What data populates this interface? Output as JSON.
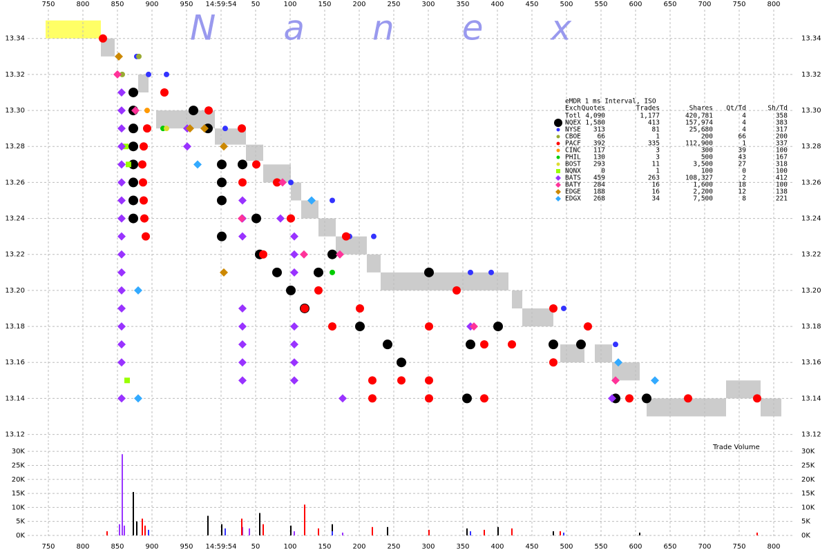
{
  "chart_data": [
    {
      "type": "scatter",
      "title": "Nanex",
      "xlim": [
        720,
        1830
      ],
      "xticks": [
        750,
        800,
        850,
        900,
        950,
        {
          "value": 1000,
          "label": "14:59:54"
        },
        {
          "value": 1050,
          "label": "50"
        },
        {
          "value": 1100,
          "label": "100"
        },
        {
          "value": 1150,
          "label": "150"
        },
        {
          "value": 1200,
          "label": "200"
        },
        {
          "value": 1250,
          "label": "250"
        },
        {
          "value": 1300,
          "label": "300"
        },
        {
          "value": 1350,
          "label": "350"
        },
        {
          "value": 1400,
          "label": "400"
        },
        {
          "value": 1450,
          "label": "450"
        },
        {
          "value": 1500,
          "label": "500"
        },
        {
          "value": 1550,
          "label": "550"
        },
        {
          "value": 1600,
          "label": "600"
        },
        {
          "value": 1650,
          "label": "650"
        },
        {
          "value": 1700,
          "label": "700"
        },
        {
          "value": 1750,
          "label": "750"
        },
        {
          "value": 1800,
          "label": "800"
        }
      ],
      "ylim": [
        13.116,
        13.356
      ],
      "yticks": [
        13.12,
        13.14,
        13.16,
        13.18,
        {
          "value": 13.2,
          "label": "13.20"
        },
        13.22,
        13.24,
        13.26,
        13.28,
        {
          "value": 13.3,
          "label": "13.30"
        },
        13.32,
        13.34
      ],
      "grid": true,
      "nbbo": {
        "color": "#cccccc",
        "x_start": [
          826,
          880,
          906,
          946,
          991,
          1036,
          1061,
          1101,
          1116,
          1141,
          1166,
          1211,
          1231,
          1256,
          1421,
          1436,
          1491,
          1541,
          1566,
          1616,
          1731,
          1781
        ],
        "x_end": [
          846,
          895,
          946,
          991,
          1036,
          1061,
          1101,
          1116,
          1141,
          1166,
          1211,
          1231,
          1256,
          1416,
          1436,
          1481,
          1526,
          1566,
          1606,
          1731,
          1781,
          1811
        ],
        "low": [
          13.33,
          13.31,
          13.29,
          13.29,
          13.281,
          13.272,
          13.26,
          13.25,
          13.24,
          13.23,
          13.22,
          13.21,
          13.2,
          13.2,
          13.19,
          13.18,
          13.16,
          13.16,
          13.15,
          13.13,
          13.14,
          13.13
        ],
        "high": [
          13.34,
          13.32,
          13.3,
          13.3,
          13.29,
          13.281,
          13.27,
          13.26,
          13.25,
          13.24,
          13.23,
          13.22,
          13.21,
          13.21,
          13.2,
          13.19,
          13.17,
          13.17,
          13.16,
          13.14,
          13.15,
          13.14
        ]
      },
      "crossed": {
        "color": "#ffff66",
        "x_start": [
          746
        ],
        "x_end": [
          826
        ],
        "low": [
          13.34
        ],
        "high": [
          13.35
        ]
      },
      "series": [
        {
          "name": "NQEX",
          "color": "#000000",
          "marker": "circle",
          "x": [
            873,
            873,
            873,
            873,
            873,
            873,
            873,
            873,
            960,
            981,
            1001,
            1001,
            1001,
            1001,
            1031,
            1051,
            1056,
            1081,
            1101,
            1121,
            1141,
            1161,
            1201,
            1241,
            1261,
            1301,
            1356,
            1361,
            1401,
            1481,
            1521,
            1571,
            1616
          ],
          "values": [
            13.31,
            13.3,
            13.29,
            13.28,
            13.27,
            13.26,
            13.25,
            13.24,
            13.3,
            13.29,
            13.27,
            13.26,
            13.25,
            13.23,
            13.27,
            13.24,
            13.22,
            13.21,
            13.2,
            13.19,
            13.21,
            13.22,
            13.18,
            13.17,
            13.16,
            13.21,
            13.14,
            13.17,
            13.18,
            13.17,
            13.17,
            13.14,
            13.14
          ]
        },
        {
          "name": "NYSE",
          "color": "#3333ff",
          "marker": "circle",
          "x": [
            878,
            895,
            921,
            1006,
            1101,
            1161,
            1186,
            1221,
            1361,
            1391,
            1496,
            1571
          ],
          "values": [
            13.33,
            13.32,
            13.32,
            13.29,
            13.26,
            13.25,
            13.23,
            13.23,
            13.21,
            13.21,
            13.19,
            13.17
          ]
        },
        {
          "name": "CBOE",
          "color": "#99aa33",
          "marker": "circle",
          "x": [
            881,
            857
          ],
          "values": [
            13.33,
            13.32
          ]
        },
        {
          "name": "PACF",
          "color": "#ff0000",
          "marker": "circle",
          "x": [
            829,
            893,
            888,
            886,
            887,
            888,
            889,
            891,
            918,
            982,
            1030,
            1031,
            1051,
            1081,
            1061,
            1101,
            1121,
            1141,
            1161,
            1181,
            1201,
            1219,
            1219,
            1261,
            1301,
            1301,
            1301,
            1341,
            1381,
            1381,
            1421,
            1481,
            1481,
            1531,
            1591,
            1676,
            1776
          ],
          "values": [
            13.34,
            13.29,
            13.28,
            13.27,
            13.26,
            13.25,
            13.24,
            13.23,
            13.31,
            13.3,
            13.29,
            13.26,
            13.27,
            13.26,
            13.22,
            13.24,
            13.19,
            13.2,
            13.18,
            13.23,
            13.19,
            13.15,
            13.14,
            13.15,
            13.18,
            13.15,
            13.14,
            13.2,
            13.17,
            13.14,
            13.17,
            13.19,
            13.16,
            13.18,
            13.14,
            13.14,
            13.14
          ]
        },
        {
          "name": "CINC",
          "color": "#ff9900",
          "marker": "circle",
          "x": [
            893
          ],
          "values": [
            13.3
          ]
        },
        {
          "name": "PHIL",
          "color": "#00cc00",
          "marker": "circle",
          "x": [
            916,
            1161
          ],
          "values": [
            13.29,
            13.21
          ]
        },
        {
          "name": "BOST",
          "color": "#dddd33",
          "marker": "circle",
          "x": [
            921
          ],
          "values": [
            13.29
          ]
        },
        {
          "name": "NQNX",
          "color": "#99ff00",
          "marker": "square",
          "x": [
            862,
            866,
            864
          ],
          "values": [
            13.28,
            13.27,
            13.15
          ]
        },
        {
          "name": "BATS",
          "color": "#9933ff",
          "marker": "diamond",
          "x": [
            856,
            856,
            856,
            856,
            856,
            856,
            856,
            856,
            856,
            856,
            856,
            856,
            856,
            856,
            856,
            856,
            856,
            951,
            951,
            1031,
            1031,
            1031,
            1031,
            1031,
            1031,
            1031,
            1031,
            1086,
            1106,
            1106,
            1106,
            1106,
            1106,
            1106,
            1106,
            1176,
            1361,
            1566
          ],
          "values": [
            13.31,
            13.3,
            13.29,
            13.28,
            13.27,
            13.26,
            13.25,
            13.24,
            13.23,
            13.22,
            13.21,
            13.2,
            13.19,
            13.18,
            13.17,
            13.16,
            13.14,
            13.29,
            13.28,
            13.25,
            13.24,
            13.23,
            13.19,
            13.18,
            13.17,
            13.16,
            13.15,
            13.24,
            13.23,
            13.22,
            13.21,
            13.18,
            13.17,
            13.16,
            13.15,
            13.14,
            13.18,
            13.14
          ]
        },
        {
          "name": "BATY",
          "color": "#ff3399",
          "marker": "diamond",
          "x": [
            850,
            876,
            1030,
            1089,
            1120,
            1172,
            1366,
            1571
          ],
          "values": [
            13.32,
            13.3,
            13.24,
            13.26,
            13.22,
            13.22,
            13.18,
            13.15
          ]
        },
        {
          "name": "EDGE",
          "color": "#cc8800",
          "marker": "diamond",
          "x": [
            852,
            955,
            976,
            1004,
            1004
          ],
          "values": [
            13.33,
            13.29,
            13.29,
            13.28,
            13.21
          ]
        },
        {
          "name": "EDGX",
          "color": "#33aaff",
          "marker": "diamond",
          "x": [
            966,
            880,
            880,
            1131,
            1575,
            1628
          ],
          "values": [
            13.27,
            13.2,
            13.14,
            13.25,
            13.16,
            13.15
          ]
        }
      ],
      "legend_table": {
        "title": "eMDR 1 ms Interval, ISO",
        "columns": [
          "Exch",
          "Quotes",
          "Trades",
          "Shares",
          "Qt/Td",
          "Sh/Td"
        ],
        "rows": [
          [
            "Totl",
            "4,090",
            "1,177",
            "420,781",
            "4",
            "358"
          ],
          [
            "NQEX",
            "1,580",
            "413",
            "157,974",
            "4",
            "383"
          ],
          [
            "NYSE",
            "313",
            "81",
            "25,680",
            "4",
            "317"
          ],
          [
            "CBOE",
            "66",
            "1",
            "200",
            "66",
            "200"
          ],
          [
            "PACF",
            "392",
            "335",
            "112,900",
            "1",
            "337"
          ],
          [
            "CINC",
            "117",
            "3",
            "300",
            "39",
            "100"
          ],
          [
            "PHIL",
            "130",
            "3",
            "500",
            "43",
            "167"
          ],
          [
            "BOST",
            "293",
            "11",
            "3,500",
            "27",
            "318"
          ],
          [
            "NQNX",
            "0",
            "1",
            "100",
            "0",
            "100"
          ],
          [
            "BATS",
            "459",
            "263",
            "108,327",
            "2",
            "412"
          ],
          [
            "BATY",
            "284",
            "16",
            "1,600",
            "18",
            "100"
          ],
          [
            "EDGE",
            "188",
            "16",
            "2,200",
            "12",
            "138"
          ],
          [
            "EDGX",
            "268",
            "34",
            "7,500",
            "8",
            "221"
          ]
        ]
      }
    },
    {
      "type": "bar",
      "title": "Trade Volume",
      "xlim": [
        720,
        1830
      ],
      "xticks": [
        750,
        800,
        850,
        900,
        950,
        {
          "value": 1000,
          "label": "14:59:54"
        },
        {
          "value": 1050,
          "label": "50"
        },
        {
          "value": 1100,
          "label": "100"
        },
        {
          "value": 1150,
          "label": "150"
        },
        {
          "value": 1200,
          "label": "200"
        },
        {
          "value": 1250,
          "label": "250"
        },
        {
          "value": 1300,
          "label": "300"
        },
        {
          "value": 1350,
          "label": "350"
        },
        {
          "value": 1400,
          "label": "400"
        },
        {
          "value": 1450,
          "label": "450"
        },
        {
          "value": 1500,
          "label": "500"
        },
        {
          "value": 1550,
          "label": "550"
        },
        {
          "value": 1600,
          "label": "600"
        },
        {
          "value": 1650,
          "label": "650"
        },
        {
          "value": 1700,
          "label": "700"
        },
        {
          "value": 1750,
          "label": "750"
        },
        {
          "value": 1800,
          "label": "800"
        }
      ],
      "ylim": [
        -500,
        33000
      ],
      "yticks": [
        {
          "value": 0,
          "label": "0K"
        },
        {
          "value": 5000,
          "label": "5K"
        },
        {
          "value": 10000,
          "label": "10K"
        },
        {
          "value": 15000,
          "label": "15K"
        },
        {
          "value": 20000,
          "label": "20K"
        },
        {
          "value": 25000,
          "label": "25K"
        },
        {
          "value": 30000,
          "label": "30K"
        }
      ],
      "grid": true,
      "series": [
        {
          "name": "BATS",
          "color": "#9933ff",
          "x": [
            853,
            857,
            860,
            1031,
            1041,
            1106,
            1176
          ],
          "values": [
            4000,
            29000,
            3500,
            3000,
            2500,
            1500,
            1000
          ]
        },
        {
          "name": "NQEX",
          "color": "#000000",
          "x": [
            873,
            878,
            981,
            1001,
            1056,
            1101,
            1161,
            1241,
            1356,
            1401,
            1481,
            1606
          ],
          "values": [
            15500,
            5000,
            7000,
            4000,
            8000,
            3500,
            4000,
            3000,
            2500,
            3000,
            1500,
            1000
          ]
        },
        {
          "name": "PACF",
          "color": "#ff0000",
          "x": [
            835,
            886,
            890,
            1030,
            1061,
            1121,
            1141,
            1219,
            1301,
            1381,
            1421,
            1491,
            1776
          ],
          "values": [
            1500,
            6000,
            3500,
            6000,
            4000,
            11000,
            2500,
            3000,
            2000,
            2000,
            2500,
            1500,
            1000
          ]
        },
        {
          "name": "NYSE",
          "color": "#3333ff",
          "x": [
            895,
            1006,
            1161,
            1361,
            1496
          ],
          "values": [
            2000,
            2500,
            1500,
            1500,
            1000
          ]
        }
      ]
    }
  ]
}
